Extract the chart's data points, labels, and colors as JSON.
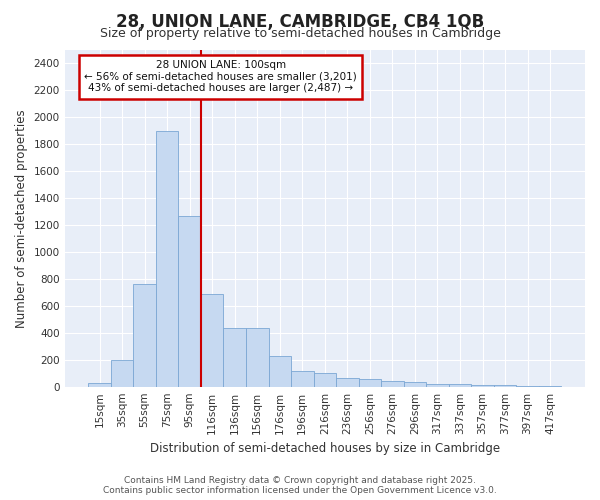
{
  "title": "28, UNION LANE, CAMBRIDGE, CB4 1QB",
  "subtitle": "Size of property relative to semi-detached houses in Cambridge",
  "xlabel": "Distribution of semi-detached houses by size in Cambridge",
  "ylabel": "Number of semi-detached properties",
  "bar_labels": [
    "15sqm",
    "35sqm",
    "55sqm",
    "75sqm",
    "95sqm",
    "116sqm",
    "136sqm",
    "156sqm",
    "176sqm",
    "196sqm",
    "216sqm",
    "236sqm",
    "256sqm",
    "276sqm",
    "296sqm",
    "317sqm",
    "337sqm",
    "357sqm",
    "377sqm",
    "397sqm",
    "417sqm"
  ],
  "bar_values": [
    25,
    200,
    760,
    1900,
    1270,
    690,
    435,
    435,
    230,
    115,
    105,
    65,
    60,
    40,
    35,
    20,
    18,
    15,
    12,
    8,
    5
  ],
  "bar_color": "#c6d9f1",
  "bar_edge_color": "#7ba7d4",
  "red_line_index": 4.5,
  "annotation_line1": "28 UNION LANE: 100sqm",
  "annotation_line2": "← 56% of semi-detached houses are smaller (3,201)",
  "annotation_line3": "43% of semi-detached houses are larger (2,487) →",
  "annotation_border_color": "#cc0000",
  "red_line_color": "#cc0000",
  "ylim": [
    0,
    2500
  ],
  "yticks": [
    0,
    200,
    400,
    600,
    800,
    1000,
    1200,
    1400,
    1600,
    1800,
    2000,
    2200,
    2400
  ],
  "plot_bg_color": "#e8eef8",
  "fig_bg_color": "#ffffff",
  "grid_color": "#ffffff",
  "footer_line1": "Contains HM Land Registry data © Crown copyright and database right 2025.",
  "footer_line2": "Contains public sector information licensed under the Open Government Licence v3.0.",
  "title_fontsize": 12,
  "subtitle_fontsize": 9,
  "axis_label_fontsize": 8.5,
  "tick_fontsize": 7.5,
  "footer_fontsize": 6.5
}
